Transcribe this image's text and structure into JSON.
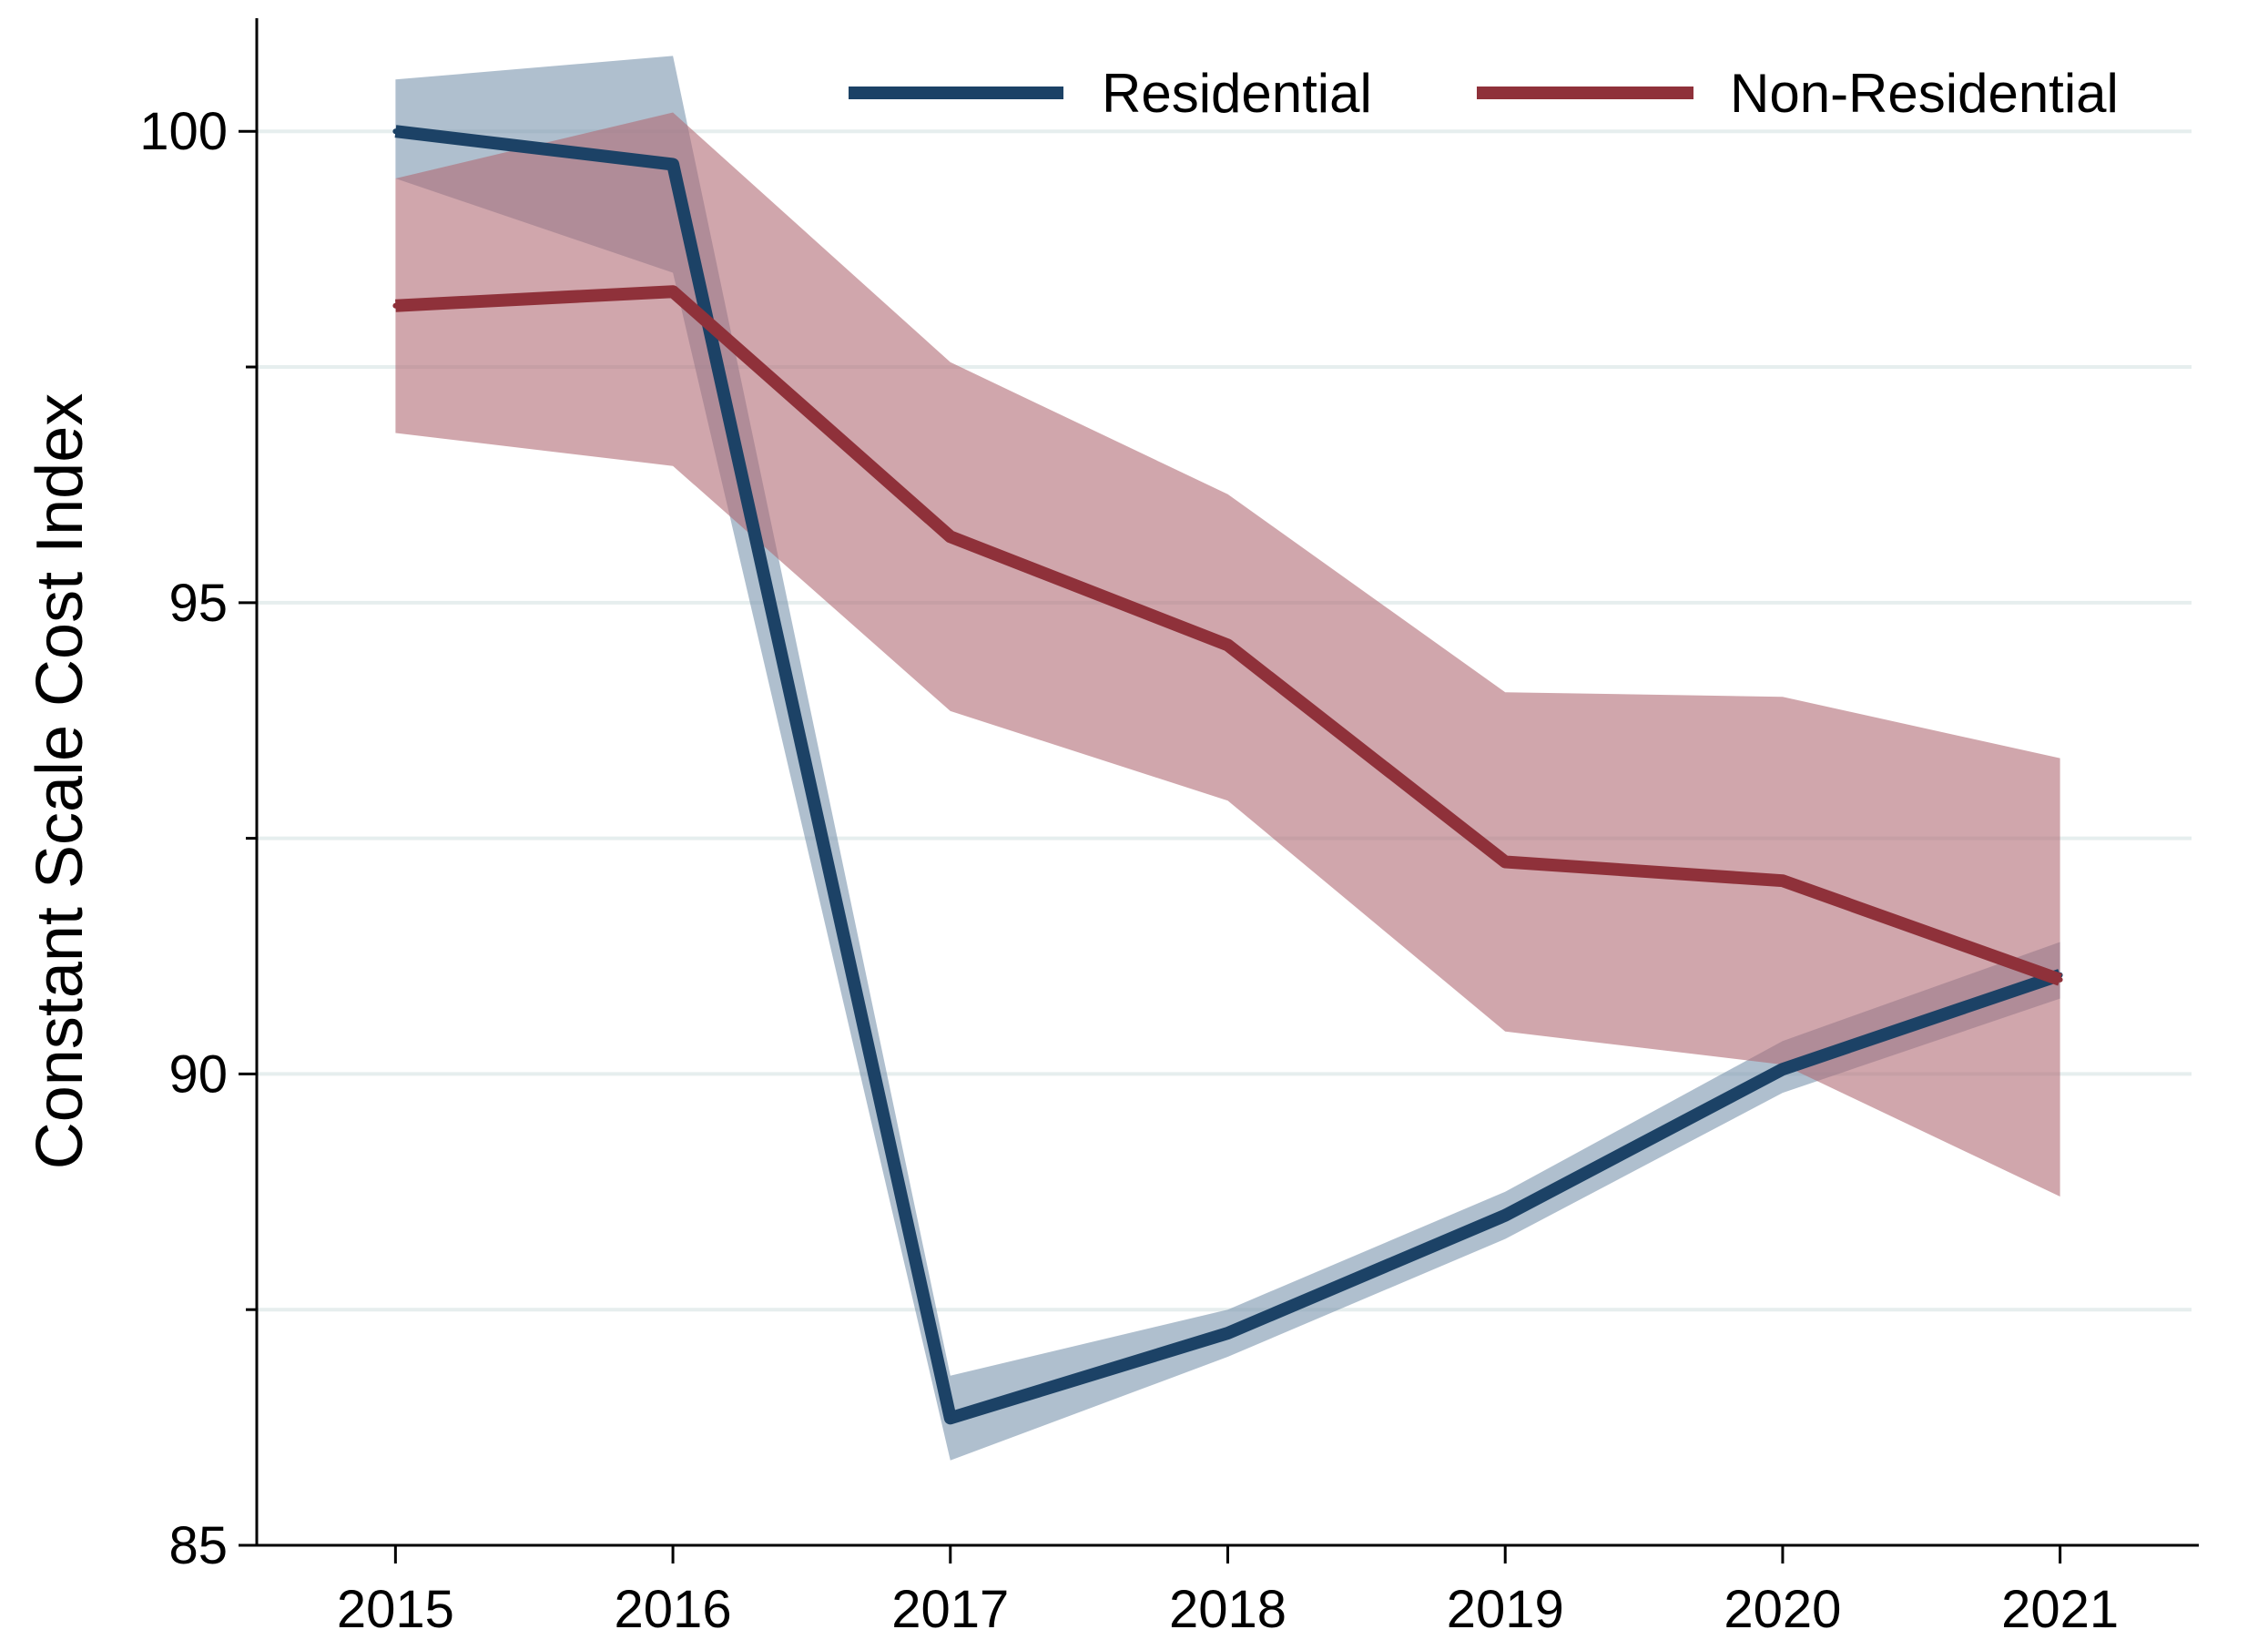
{
  "chart_data": {
    "type": "line",
    "title": "",
    "xlabel": "",
    "ylabel": "Constant Scale Cost Index",
    "x": [
      2015,
      2016,
      2017,
      2018,
      2019,
      2020,
      2021
    ],
    "xlim": [
      2014.5,
      2021.5
    ],
    "ylim": [
      85,
      101.2
    ],
    "yticks": [
      85,
      90,
      95,
      100
    ],
    "yticks_minor": [
      87.5,
      92.5,
      97.5
    ],
    "grid": true,
    "legend_position": "top-right",
    "series": [
      {
        "name": "Residential",
        "color": "#1c4266",
        "band_color": "#7a95ae",
        "values": [
          100.0,
          99.65,
          86.35,
          87.25,
          88.5,
          90.05,
          91.05
        ],
        "lower": [
          99.5,
          98.5,
          85.9,
          87.0,
          88.25,
          89.8,
          90.8
        ],
        "upper": [
          100.55,
          100.8,
          86.8,
          87.5,
          88.75,
          90.35,
          91.4
        ]
      },
      {
        "name": "Non-Residential",
        "color": "#8f313a",
        "band_color": "#b06b75",
        "values": [
          98.15,
          98.3,
          95.7,
          94.55,
          92.25,
          92.05,
          91.0
        ],
        "lower": [
          96.8,
          96.45,
          93.85,
          92.9,
          90.45,
          90.1,
          88.7
        ],
        "upper": [
          99.5,
          100.2,
          97.55,
          96.15,
          94.05,
          94.0,
          93.35
        ]
      }
    ]
  }
}
